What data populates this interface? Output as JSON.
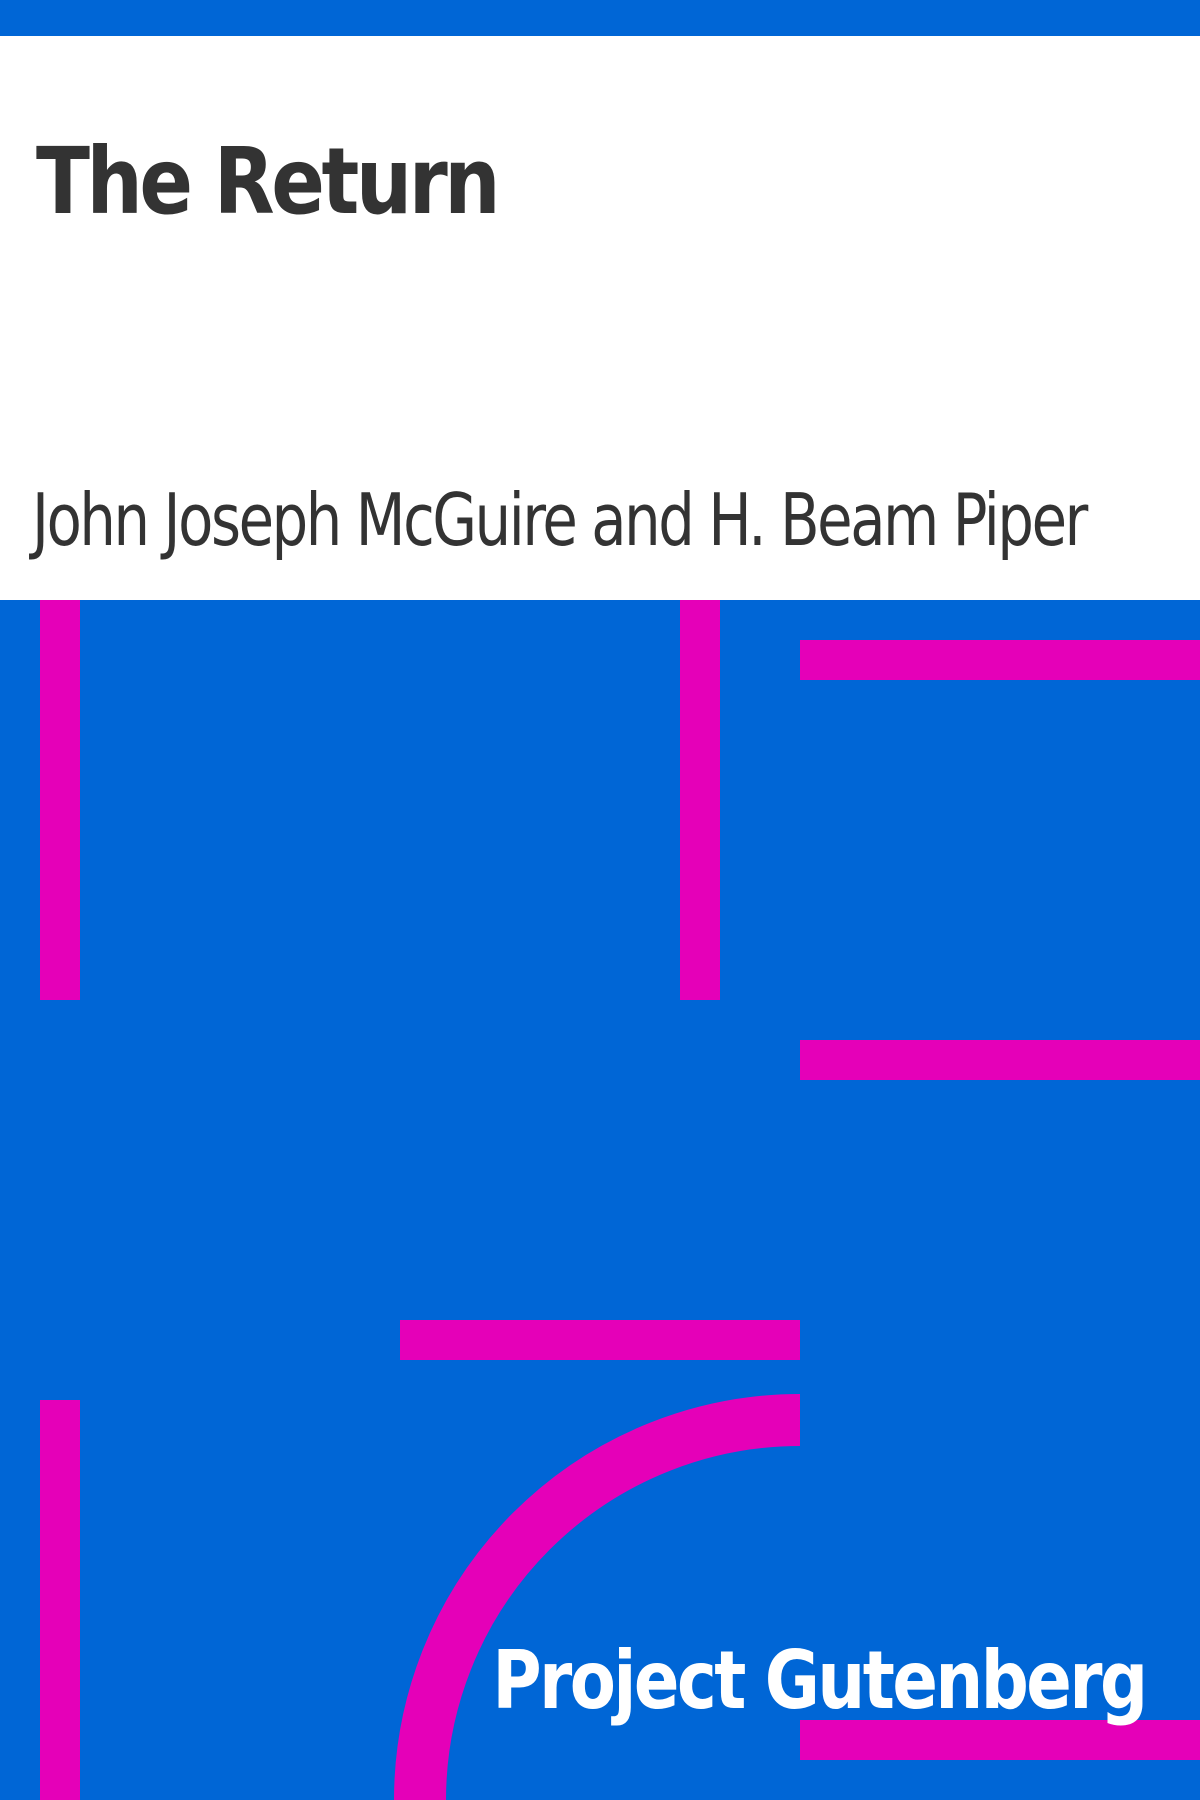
{
  "book": {
    "title": "The Return",
    "author": "John Joseph McGuire and H. Beam Piper",
    "publisher": "Project Gutenberg"
  },
  "colors": {
    "background": "#0066d6",
    "panel": "#ffffff",
    "text": "#333333",
    "accent": "#e500b8",
    "publisher_text": "#ffffff"
  }
}
